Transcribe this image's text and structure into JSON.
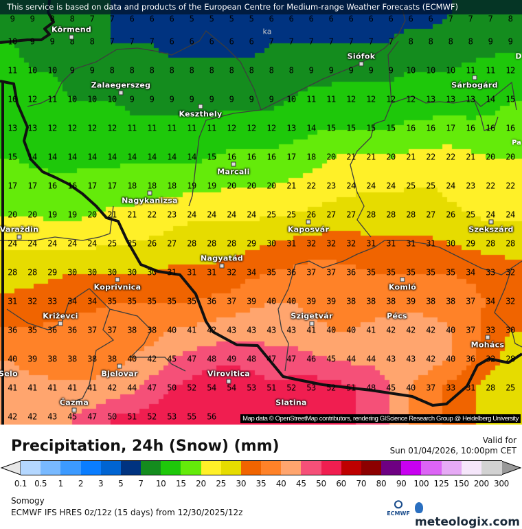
{
  "banner": "This service is based on data and products of the European Centre for Medium-range Weather Forecasts (ECMWF)",
  "attribution": "Map data © OpenStreetMap contributors, rendering GIScience Research Group @ Heidelberg University",
  "title": "Precipitation, 24h (Snow) (mm)",
  "valid_label": "Valid for",
  "valid_time": "Sun 01/04/2026, 10:00pm CET",
  "region": "Somogy",
  "model_line": "ECMWF IFS HRES 0z/12z (15 days) from  12/30/2025/12z",
  "logos": {
    "ecmwf": "ECMWF",
    "meteologix": "meteologix.com"
  },
  "legend": {
    "labels": [
      "0.1",
      "0.5",
      "1",
      "2",
      "3",
      "5",
      "7",
      "10",
      "15",
      "20",
      "25",
      "30",
      "35",
      "40",
      "45",
      "50",
      "60",
      "70",
      "80",
      "90",
      "100",
      "125",
      "150",
      "200",
      "300"
    ],
    "colors": [
      "#b4d7ff",
      "#78b9ff",
      "#3c9aff",
      "#0a7dff",
      "#0064d2",
      "#003380",
      "#148c1e",
      "#1ec80a",
      "#64eb0a",
      "#fff028",
      "#e6dc00",
      "#f06400",
      "#ff8228",
      "#ffa56e",
      "#f55078",
      "#f01e50",
      "#be0000",
      "#8c0000",
      "#6e0082",
      "#c800f0",
      "#dc64f5",
      "#e6aaf5",
      "#f5e6fa",
      "#d2d2d2"
    ],
    "under_color": "#e8e8e8",
    "over_color": "#999999"
  },
  "grid_values": [
    [
      9,
      9,
      8,
      8,
      7,
      7,
      6,
      6,
      6,
      5,
      5,
      5,
      5,
      6,
      6,
      6,
      6,
      6,
      6,
      6,
      6,
      6,
      7,
      7,
      7,
      8
    ],
    [
      10,
      9,
      9,
      8,
      8,
      7,
      7,
      7,
      6,
      6,
      6,
      6,
      6,
      7,
      7,
      7,
      7,
      7,
      7,
      7,
      8,
      8,
      8,
      8,
      9,
      9
    ],
    [
      11,
      10,
      10,
      9,
      9,
      8,
      8,
      8,
      8,
      8,
      8,
      8,
      8,
      8,
      8,
      9,
      9,
      9,
      9,
      9,
      10,
      10,
      10,
      11,
      11,
      12
    ],
    [
      10,
      12,
      11,
      10,
      10,
      10,
      9,
      9,
      9,
      9,
      9,
      9,
      9,
      9,
      10,
      11,
      11,
      12,
      12,
      12,
      12,
      13,
      13,
      13,
      14,
      15
    ],
    [
      13,
      13,
      12,
      12,
      12,
      12,
      11,
      11,
      11,
      11,
      11,
      12,
      12,
      12,
      13,
      14,
      15,
      15,
      15,
      15,
      16,
      16,
      17,
      16,
      16,
      16
    ],
    [
      15,
      14,
      14,
      14,
      14,
      14,
      14,
      14,
      14,
      14,
      15,
      16,
      16,
      16,
      17,
      18,
      20,
      21,
      21,
      20,
      21,
      22,
      22,
      21,
      20,
      20
    ],
    [
      17,
      17,
      16,
      16,
      17,
      17,
      18,
      18,
      18,
      19,
      19,
      20,
      20,
      20,
      21,
      22,
      23,
      24,
      24,
      24,
      25,
      25,
      24,
      23,
      22,
      22
    ],
    [
      20,
      20,
      19,
      19,
      20,
      21,
      21,
      22,
      23,
      24,
      24,
      24,
      24,
      25,
      25,
      26,
      27,
      27,
      28,
      28,
      28,
      27,
      26,
      25,
      24,
      24
    ],
    [
      24,
      24,
      24,
      24,
      24,
      25,
      25,
      26,
      27,
      28,
      28,
      28,
      29,
      30,
      31,
      32,
      32,
      32,
      31,
      31,
      31,
      31,
      30,
      29,
      28,
      28
    ],
    [
      28,
      28,
      29,
      30,
      30,
      30,
      30,
      30,
      31,
      31,
      31,
      32,
      34,
      35,
      36,
      37,
      37,
      36,
      35,
      35,
      35,
      35,
      35,
      34,
      33,
      32
    ],
    [
      31,
      32,
      33,
      34,
      34,
      35,
      35,
      35,
      35,
      35,
      36,
      37,
      39,
      40,
      40,
      39,
      39,
      38,
      38,
      38,
      39,
      38,
      38,
      37,
      34,
      32
    ],
    [
      36,
      35,
      36,
      36,
      37,
      37,
      38,
      38,
      40,
      41,
      42,
      43,
      43,
      43,
      43,
      41,
      40,
      40,
      41,
      42,
      42,
      42,
      40,
      37,
      33,
      30
    ],
    [
      40,
      39,
      38,
      38,
      38,
      38,
      40,
      42,
      45,
      47,
      48,
      49,
      48,
      47,
      47,
      46,
      45,
      44,
      44,
      43,
      43,
      42,
      40,
      36,
      32,
      28
    ],
    [
      41,
      41,
      41,
      41,
      41,
      42,
      44,
      47,
      50,
      52,
      54,
      54,
      53,
      51,
      52,
      53,
      52,
      51,
      48,
      45,
      40,
      37,
      33,
      31,
      28,
      25
    ],
    [
      42,
      42,
      43,
      45,
      47,
      50,
      51,
      52,
      53,
      55,
      56
    ]
  ],
  "cities": [
    "Körmend",
    "Zalaegerszeg",
    "Keszthely",
    "Marcali",
    "Nagykanizsa",
    "Siófok",
    "Sárbogárd",
    "Varaždin",
    "Kaposvár",
    "Szekszárd",
    "Nagyatád",
    "Koprivnica",
    "Komló",
    "Križevci",
    "Szigetvár",
    "Pécs",
    "Mohács",
    "Bjelovar",
    "Virovitica",
    "Selo",
    "Čazma",
    "Slatina"
  ],
  "edge_labels": [
    "ka",
    "D",
    "Pa"
  ]
}
